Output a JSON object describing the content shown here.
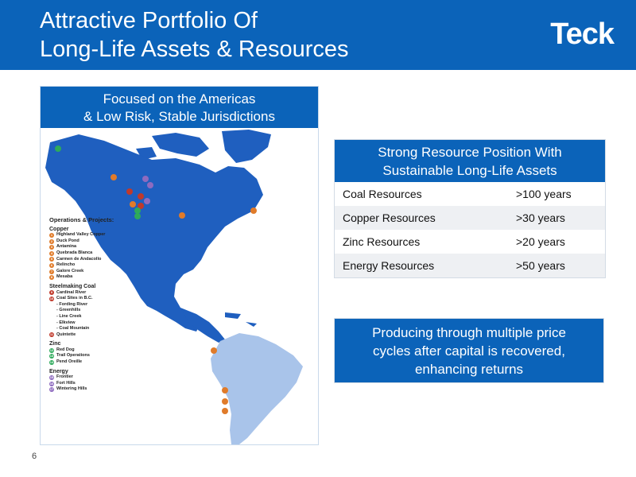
{
  "header": {
    "title_line1": "Attractive Portfolio Of",
    "title_line2": "Long-Life Assets & Resources",
    "logo": "Teck"
  },
  "map": {
    "heading_line1": "Focused on the Americas",
    "heading_line2": "& Low Risk, Stable Jurisdictions",
    "legend": {
      "title": "Operations & Projects:",
      "copper_title": "Copper",
      "copper": [
        {
          "n": "1",
          "name": "Highland Valley Copper"
        },
        {
          "n": "2",
          "name": "Duck Pond"
        },
        {
          "n": "3",
          "name": "Antamina"
        },
        {
          "n": "4",
          "name": "Quebrada Blanca"
        },
        {
          "n": "5",
          "name": "Carmen de Andacollo"
        },
        {
          "n": "6",
          "name": "Relincho"
        },
        {
          "n": "7",
          "name": "Galore Creek"
        },
        {
          "n": "8",
          "name": "Mesaba"
        }
      ],
      "coal_title": "Steelmaking Coal",
      "coal": [
        {
          "n": "9",
          "name": "Cardinal River"
        },
        {
          "n": "10",
          "name": "Coal Sites in B.C."
        }
      ],
      "coal_sub": [
        "- Fording River",
        "- Greenhills",
        "- Line Creek",
        "- Elkview",
        "- Coal Mountain"
      ],
      "coal_extra": [
        {
          "n": "11",
          "name": "Quintette"
        }
      ],
      "zinc_title": "Zinc",
      "zinc": [
        {
          "n": "12",
          "name": "Red Dog"
        },
        {
          "n": "13",
          "name": "Trail Operations"
        },
        {
          "n": "14",
          "name": "Pend Oreille"
        }
      ],
      "energy_title": "Energy",
      "energy": [
        {
          "n": "15",
          "name": "Frontier"
        },
        {
          "n": "16",
          "name": "Fort Hills"
        },
        {
          "n": "17",
          "name": "Wintering Hills"
        }
      ]
    }
  },
  "resources": {
    "heading_line1": "Strong Resource Position With",
    "heading_line2": "Sustainable Long-Life Assets",
    "rows": [
      {
        "label": "Coal Resources",
        "value": ">100 years"
      },
      {
        "label": "Copper Resources",
        "value": ">30 years"
      },
      {
        "label": "Zinc Resources",
        "value": ">20 years"
      },
      {
        "label": "Energy Resources",
        "value": ">50 years"
      }
    ]
  },
  "producing": {
    "line1": "Producing through multiple price",
    "line2": "cycles after capital is recovered,",
    "line3": "enhancing returns"
  },
  "page_number": "6",
  "colors": {
    "brand_blue": "#0b63b9",
    "north_america": "#1f5fbf",
    "south_america": "#a9c4ea",
    "copper": "#e07b2a",
    "coal": "#c0392b",
    "zinc": "#2eaa5b",
    "energy": "#8e6bbf"
  }
}
